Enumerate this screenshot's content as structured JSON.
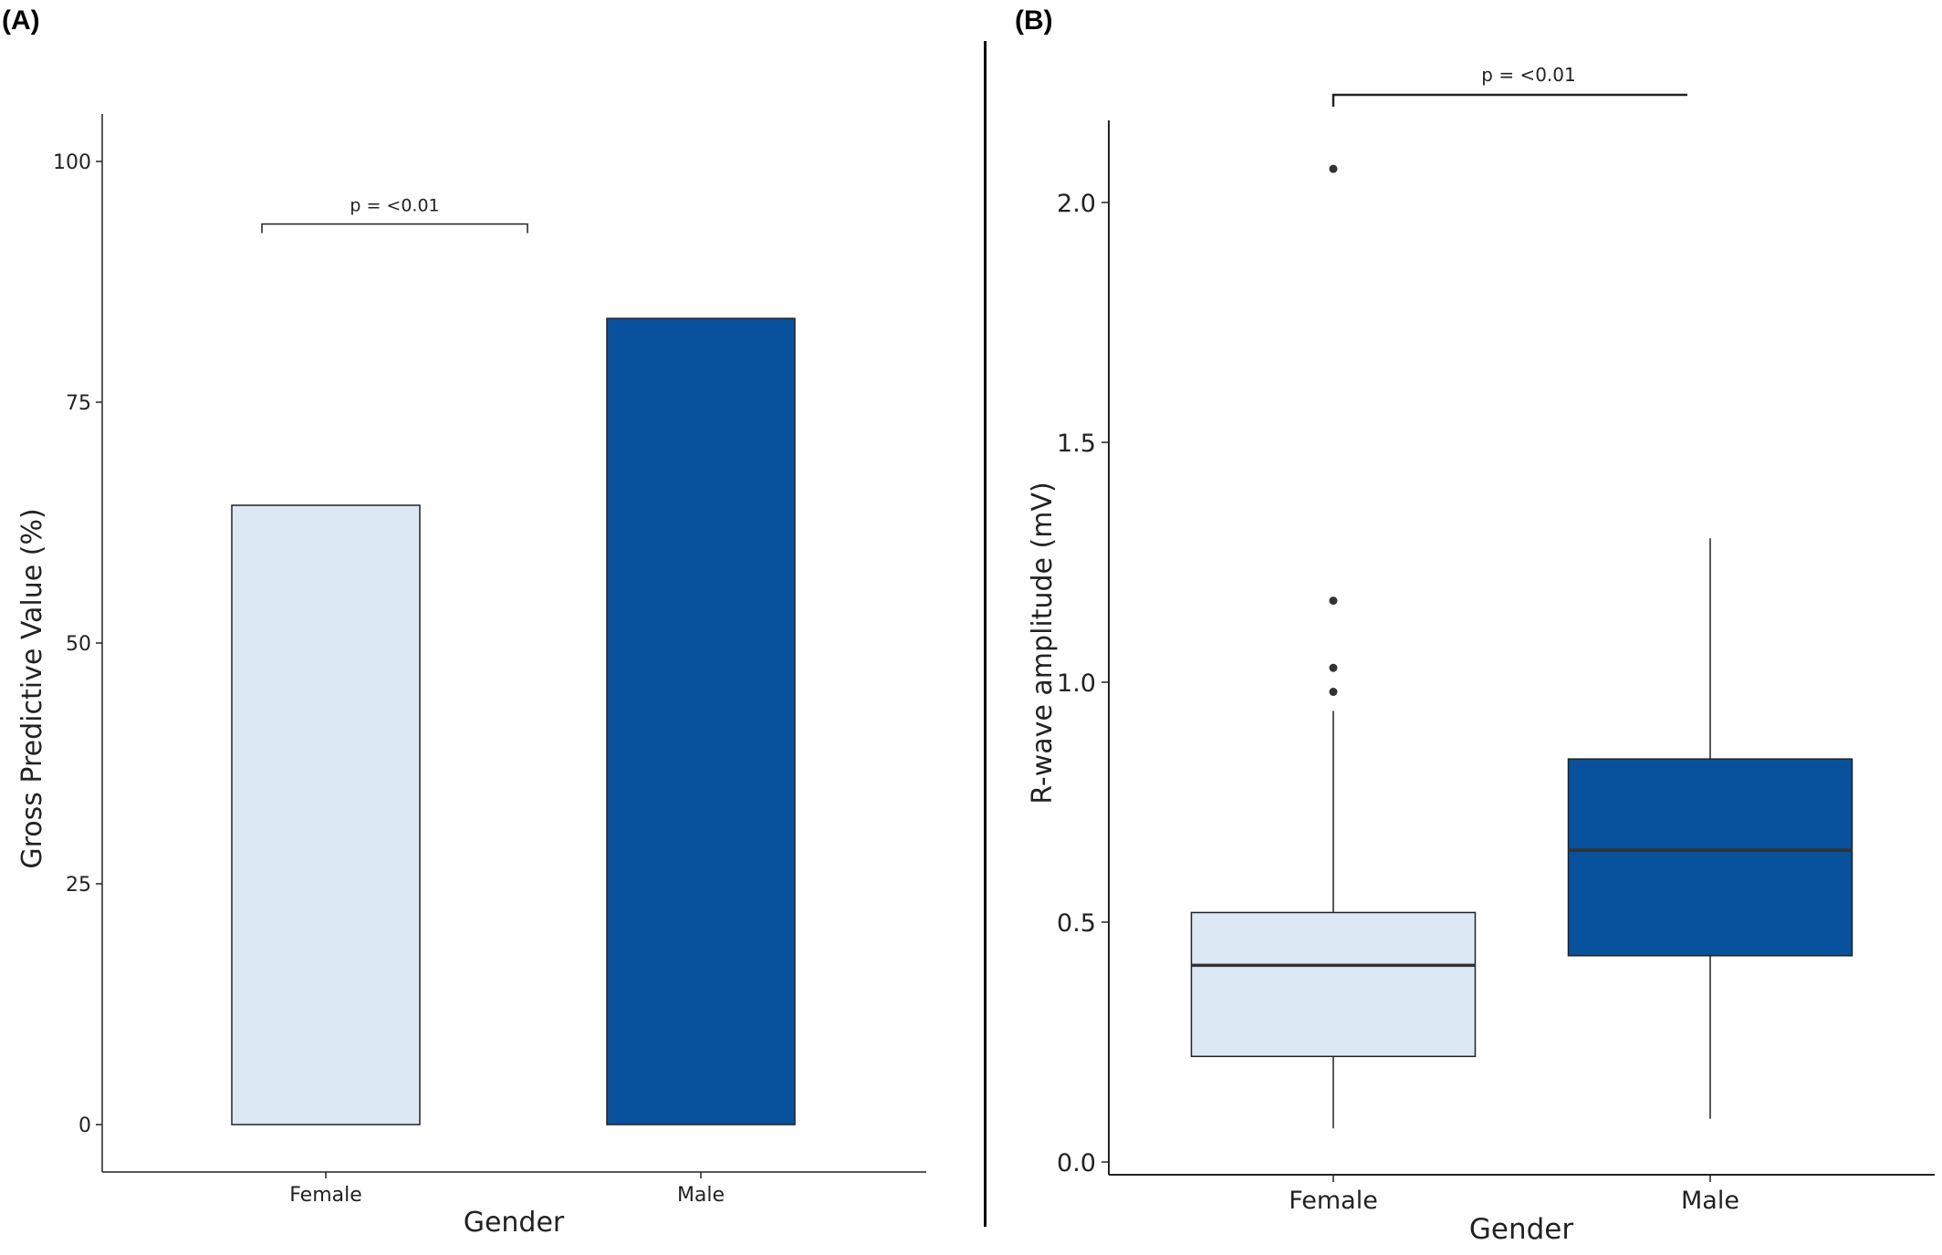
{
  "panels": {
    "a_label": "(A)",
    "b_label": "(B)"
  },
  "colors": {
    "female_fill": "#dde8f5",
    "male_fill": "#08519c",
    "stroke": "#222222",
    "median": "#333333"
  },
  "chart_data": [
    {
      "type": "bar",
      "panel": "(A)",
      "title": "",
      "xlabel": "Gender",
      "ylabel": "Gross Predictive Value (%)",
      "categories": [
        "Female",
        "Male"
      ],
      "values": [
        64.3,
        83.7
      ],
      "ylim": [
        -5,
        105
      ],
      "yticks": [
        0,
        25,
        50,
        75,
        100
      ],
      "annotation": {
        "text": "p = <0.01",
        "between": [
          "Female",
          "Male"
        ],
        "y": 93.5
      },
      "grid": false,
      "legend": "none"
    },
    {
      "type": "box",
      "panel": "(B)",
      "title": "",
      "xlabel": "Gender",
      "ylabel": "R-wave amplitude (mV)",
      "categories": [
        "Female",
        "Male"
      ],
      "boxes": [
        {
          "name": "Female",
          "min": 0.07,
          "q1": 0.22,
          "median": 0.41,
          "q3": 0.52,
          "max": 0.94,
          "outliers": [
            0.98,
            1.03,
            1.17,
            2.07
          ]
        },
        {
          "name": "Male",
          "min": 0.09,
          "q1": 0.43,
          "median": 0.65,
          "q3": 0.84,
          "max": 1.3,
          "outliers": []
        }
      ],
      "ylim": [
        -0.03,
        2.17
      ],
      "yticks": [
        "0.0",
        "0.5",
        "1.0",
        "1.5",
        "2.0"
      ],
      "annotation": {
        "text": "p = <0.01",
        "between": [
          "Female",
          "Male"
        ],
        "y": 2.22
      },
      "grid": false,
      "legend": "none"
    }
  ]
}
